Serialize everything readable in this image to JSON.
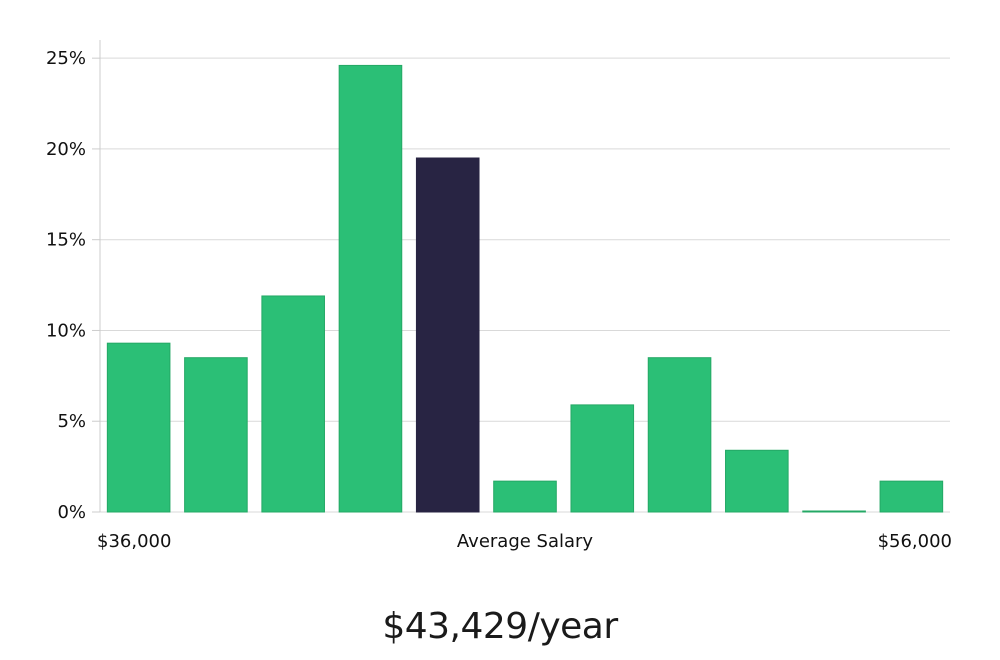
{
  "chart_data": {
    "type": "bar",
    "title": "",
    "xlabel": "Average Salary",
    "ylabel": "",
    "x_range_labels": [
      "$36,000",
      "$56,000"
    ],
    "ylim": [
      0,
      26
    ],
    "yticks": [
      0,
      5,
      10,
      15,
      20,
      25
    ],
    "ytick_labels": [
      "0%",
      "5%",
      "10%",
      "15%",
      "20%",
      "25%"
    ],
    "grid": "horizontal",
    "legend": "none",
    "highlight_index": 4,
    "values": [
      9.3,
      8.5,
      11.9,
      24.6,
      19.5,
      1.7,
      5.9,
      8.5,
      3.4,
      0.05,
      1.7
    ]
  },
  "colors": {
    "bar": "#2bbf76",
    "bar_stroke": "#24a865",
    "highlight": "#282443",
    "grid": "#d9d9d9",
    "axis": "#cccccc"
  },
  "salary_label": "$43,429/year"
}
